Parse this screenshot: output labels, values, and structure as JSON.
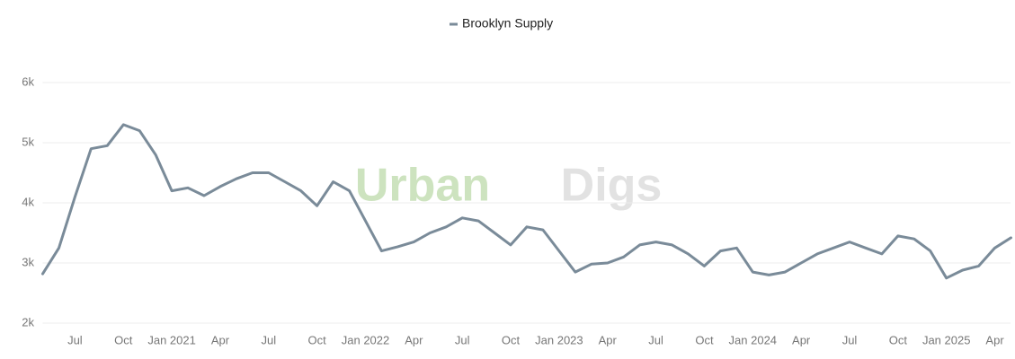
{
  "chart_data": {
    "type": "line",
    "watermark": [
      "Urban",
      "Digs"
    ],
    "x": [
      "2020-05",
      "2020-06",
      "2020-07",
      "2020-08",
      "2020-09",
      "2020-10",
      "2020-11",
      "2020-12",
      "2021-01",
      "2021-02",
      "2021-03",
      "2021-04",
      "2021-05",
      "2021-06",
      "2021-07",
      "2021-08",
      "2021-09",
      "2021-10",
      "2021-11",
      "2021-12",
      "2022-01",
      "2022-02",
      "2022-03",
      "2022-04",
      "2022-05",
      "2022-06",
      "2022-07",
      "2022-08",
      "2022-09",
      "2022-10",
      "2022-11",
      "2022-12",
      "2023-01",
      "2023-02",
      "2023-03",
      "2023-04",
      "2023-05",
      "2023-06",
      "2023-07",
      "2023-08",
      "2023-09",
      "2023-10",
      "2023-11",
      "2023-12",
      "2024-01",
      "2024-02",
      "2024-03",
      "2024-04",
      "2024-05",
      "2024-06",
      "2024-07",
      "2024-08",
      "2024-09",
      "2024-10",
      "2024-11",
      "2024-12",
      "2025-01",
      "2025-02",
      "2025-03",
      "2025-04",
      "2025-05"
    ],
    "series": [
      {
        "name": "Brooklyn Supply",
        "color": "#7a8b99",
        "values": [
          2820,
          3250,
          4100,
          4900,
          4950,
          5300,
          5200,
          4800,
          4200,
          4250,
          4120,
          4270,
          4400,
          4500,
          4500,
          4350,
          4200,
          3950,
          4350,
          4200,
          3700,
          3200,
          3270,
          3350,
          3500,
          3600,
          3750,
          3700,
          3500,
          3300,
          3600,
          3550,
          3200,
          2850,
          2980,
          3000,
          3100,
          3300,
          3350,
          3300,
          3150,
          2950,
          3200,
          3250,
          2850,
          2800,
          2850,
          3000,
          3150,
          3250,
          3350,
          3250,
          3150,
          3450,
          3400,
          3200,
          2750,
          2880,
          2950,
          3250,
          3420
        ]
      }
    ],
    "ylim": [
      2000,
      6000
    ],
    "yticks": [
      {
        "value": 2000,
        "label": "2k"
      },
      {
        "value": 3000,
        "label": "3k"
      },
      {
        "value": 4000,
        "label": "4k"
      },
      {
        "value": 5000,
        "label": "5k"
      },
      {
        "value": 6000,
        "label": "6k"
      }
    ],
    "xticks": [
      {
        "value": "2020-07",
        "label": "Jul"
      },
      {
        "value": "2020-10",
        "label": "Oct"
      },
      {
        "value": "2021-01",
        "label": "Jan 2021"
      },
      {
        "value": "2021-04",
        "label": "Apr"
      },
      {
        "value": "2021-07",
        "label": "Jul"
      },
      {
        "value": "2021-10",
        "label": "Oct"
      },
      {
        "value": "2022-01",
        "label": "Jan 2022"
      },
      {
        "value": "2022-04",
        "label": "Apr"
      },
      {
        "value": "2022-07",
        "label": "Jul"
      },
      {
        "value": "2022-10",
        "label": "Oct"
      },
      {
        "value": "2023-01",
        "label": "Jan 2023"
      },
      {
        "value": "2023-04",
        "label": "Apr"
      },
      {
        "value": "2023-07",
        "label": "Jul"
      },
      {
        "value": "2023-10",
        "label": "Oct"
      },
      {
        "value": "2024-01",
        "label": "Jan 2024"
      },
      {
        "value": "2024-04",
        "label": "Apr"
      },
      {
        "value": "2024-07",
        "label": "Jul"
      },
      {
        "value": "2024-10",
        "label": "Oct"
      },
      {
        "value": "2025-01",
        "label": "Jan 2025"
      },
      {
        "value": "2025-04",
        "label": "Apr"
      }
    ],
    "grid": true,
    "legend": "top"
  }
}
